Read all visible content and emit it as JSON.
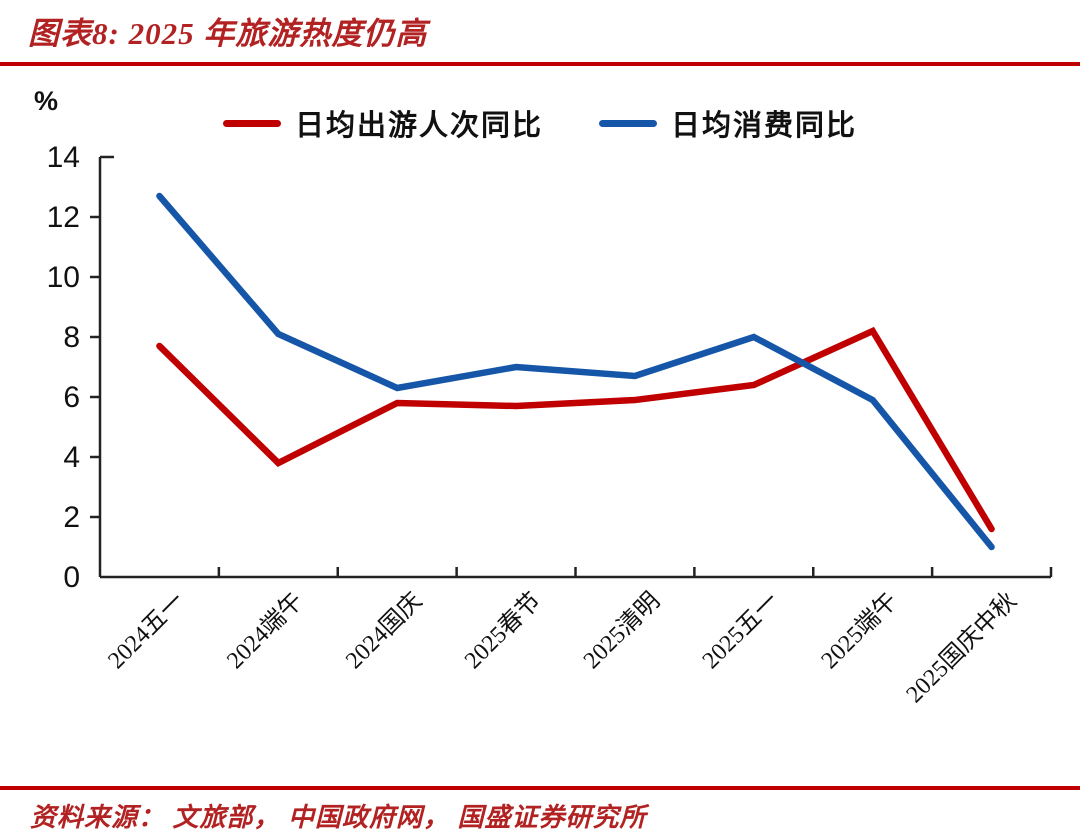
{
  "header": {
    "title": "图表8:  2025 年旅游热度仍高"
  },
  "footer": {
    "source": "资料来源：  文旅部，  中国政府网，  国盛证券研究所"
  },
  "colors": {
    "accent_red": "#C00000",
    "title_red": "#B22222",
    "series_red": "#C00000",
    "series_blue": "#1656A8",
    "axis_black": "#222222"
  },
  "chart_data": {
    "type": "line",
    "title": "图表8: 2025 年旅游热度仍高",
    "unit_label": "%",
    "xlabel": "",
    "ylabel": "%",
    "ylim": [
      0,
      14
    ],
    "ytick_step": 2,
    "grid": false,
    "legend_position": "top",
    "categories": [
      "2024五一",
      "2024端午",
      "2024国庆",
      "2025春节",
      "2025清明",
      "2025五一",
      "2025端午",
      "2025国庆中秋"
    ],
    "series": [
      {
        "name": "日均出游人次同比",
        "color": "#C00000",
        "values": [
          7.7,
          3.8,
          5.8,
          5.7,
          5.9,
          6.4,
          8.2,
          1.6
        ]
      },
      {
        "name": "日均消费同比",
        "color": "#1656A8",
        "values": [
          12.7,
          8.1,
          6.3,
          7.0,
          6.7,
          8.0,
          5.9,
          1.0
        ]
      }
    ]
  }
}
